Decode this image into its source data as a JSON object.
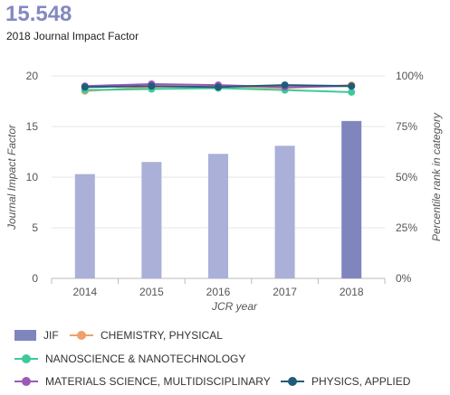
{
  "header": {
    "value": "15.548",
    "label": "2018 Journal Impact Factor"
  },
  "chart_data": {
    "type": "bar+line",
    "categories": [
      "2014",
      "2015",
      "2016",
      "2017",
      "2018"
    ],
    "xlabel": "JCR year",
    "ylabel_left": "Journal Impact Factor",
    "ylabel_right": "Percentile rank in category",
    "ylim_left": [
      0,
      20
    ],
    "yticks_left": [
      "0",
      "5",
      "10",
      "15",
      "20"
    ],
    "ylim_right": [
      0,
      100
    ],
    "yticks_right": [
      "0%",
      "25%",
      "50%",
      "75%",
      "100%"
    ],
    "bar_series": {
      "name": "JIF",
      "values": [
        10.3,
        11.5,
        12.3,
        13.1,
        15.548
      ],
      "color": "#aab0d8",
      "highlight_color": "#7f86bd",
      "highlight_index": 4
    },
    "line_series": [
      {
        "name": "CHEMISTRY, PHYSICAL",
        "values": [
          92.5,
          94.5,
          95.0,
          94.0,
          95.5
        ],
        "color": "#f0a06a"
      },
      {
        "name": "NANOSCIENCE & NANOTECHNOLOGY",
        "values": [
          93.0,
          93.5,
          94.0,
          93.0,
          92.0
        ],
        "color": "#3ec99a"
      },
      {
        "name": "MATERIALS SCIENCE, MULTIDISCIPLINARY",
        "values": [
          95.0,
          96.0,
          95.5,
          94.5,
          95.0
        ],
        "color": "#9b59b6"
      },
      {
        "name": "PHYSICS, APPLIED",
        "values": [
          94.5,
          95.0,
          94.5,
          95.5,
          95.0
        ],
        "color": "#1f5c7a"
      }
    ],
    "grid": true,
    "legend_position": "bottom"
  }
}
